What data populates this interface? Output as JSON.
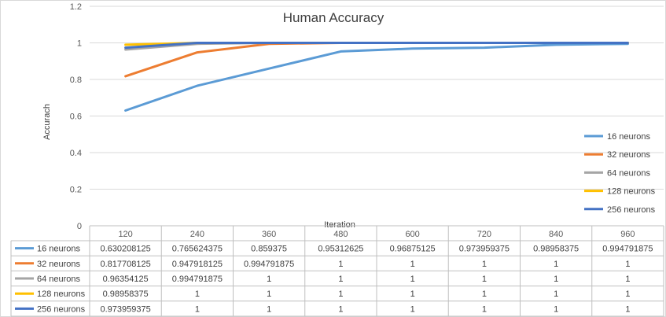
{
  "chart_data": {
    "type": "line",
    "title": "Human Accuracy",
    "xlabel": "Iteration",
    "ylabel": "Accurach",
    "x": [
      "120",
      "240",
      "360",
      "480",
      "600",
      "720",
      "840",
      "960"
    ],
    "ylim": [
      0,
      1.2
    ],
    "yticks": [
      "0",
      "0.2",
      "0.4",
      "0.6",
      "0.8",
      "1",
      "1.2"
    ],
    "grid": true,
    "legend_position": "right",
    "series": [
      {
        "name": "16 neurons",
        "color": "#5B9BD5",
        "values": [
          0.630208125,
          0.765624375,
          0.859375,
          0.95312625,
          0.96875125,
          0.973959375,
          0.98958375,
          0.994791875
        ],
        "labels": [
          "0.630208125",
          "0.765624375",
          "0.859375",
          "0.95312625",
          "0.96875125",
          "0.973959375",
          "0.98958375",
          "0.994791875"
        ]
      },
      {
        "name": "32 neurons",
        "color": "#ED7D31",
        "values": [
          0.817708125,
          0.947918125,
          0.994791875,
          1,
          1,
          1,
          1,
          1
        ],
        "labels": [
          "0.817708125",
          "0.947918125",
          "0.994791875",
          "1",
          "1",
          "1",
          "1",
          "1"
        ]
      },
      {
        "name": "64 neurons",
        "color": "#A5A5A5",
        "values": [
          0.96354125,
          0.994791875,
          1,
          1,
          1,
          1,
          1,
          1
        ],
        "labels": [
          "0.96354125",
          "0.994791875",
          "1",
          "1",
          "1",
          "1",
          "1",
          "1"
        ]
      },
      {
        "name": "128 neurons",
        "color": "#FFC000",
        "values": [
          0.98958375,
          1,
          1,
          1,
          1,
          1,
          1,
          1
        ],
        "labels": [
          "0.98958375",
          "1",
          "1",
          "1",
          "1",
          "1",
          "1",
          "1"
        ]
      },
      {
        "name": "256 neurons",
        "color": "#4472C4",
        "values": [
          0.973959375,
          1,
          1,
          1,
          1,
          1,
          1,
          1
        ],
        "labels": [
          "0.973959375",
          "1",
          "1",
          "1",
          "1",
          "1",
          "1",
          "1"
        ]
      }
    ]
  }
}
